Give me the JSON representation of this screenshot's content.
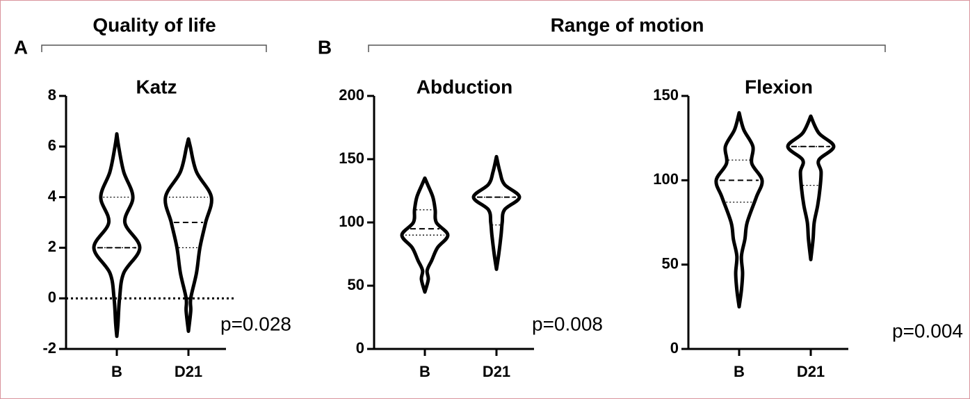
{
  "panels": [
    {
      "label": "A",
      "title": "Quality of life"
    },
    {
      "label": "B",
      "title": "Range of motion"
    }
  ],
  "chart_data": [
    {
      "type": "violin",
      "title": "Katz",
      "categories": [
        "B",
        "D21"
      ],
      "ylim": [
        -2,
        8
      ],
      "yticks": [
        -2,
        0,
        2,
        4,
        6,
        8
      ],
      "reference_line": 0,
      "annotation": "p=0.028",
      "color": "#000000",
      "violins": [
        {
          "y": [
            -1.5,
            -1,
            0,
            1,
            2,
            3,
            4,
            5,
            6,
            6.5
          ],
          "width": [
            0,
            0.05,
            0.12,
            0.3,
            1,
            0.35,
            0.7,
            0.3,
            0.08,
            0
          ],
          "q1": 2,
          "median": 2,
          "q3": 4
        },
        {
          "y": [
            -1.3,
            -0.5,
            0,
            1,
            2,
            3,
            4,
            5,
            6,
            6.3
          ],
          "width": [
            0,
            0.1,
            0.1,
            0.35,
            0.5,
            0.75,
            1,
            0.35,
            0.08,
            0
          ],
          "q1": 2,
          "median": 3,
          "q3": 4
        }
      ]
    },
    {
      "type": "violin",
      "title": "Abduction",
      "categories": [
        "B",
        "D21"
      ],
      "ylim": [
        0,
        200
      ],
      "yticks": [
        0,
        50,
        100,
        150,
        200
      ],
      "annotation": "p=0.008",
      "color": "#000000",
      "violins": [
        {
          "y": [
            45,
            55,
            62,
            70,
            80,
            90,
            100,
            110,
            120,
            130,
            135
          ],
          "width": [
            0,
            0.15,
            0.1,
            0.3,
            0.55,
            1,
            0.5,
            0.45,
            0.35,
            0.12,
            0
          ],
          "q1": 90,
          "median": 95,
          "q3": 110
        },
        {
          "y": [
            63,
            75,
            90,
            100,
            110,
            120,
            130,
            140,
            152
          ],
          "width": [
            0,
            0.1,
            0.2,
            0.25,
            0.35,
            1,
            0.35,
            0.15,
            0
          ],
          "q1": 98,
          "median": 120,
          "q3": 120
        }
      ]
    },
    {
      "type": "violin",
      "title": "Flexion",
      "categories": [
        "B",
        "D21"
      ],
      "ylim": [
        0,
        150
      ],
      "yticks": [
        0,
        50,
        100,
        150
      ],
      "annotation": "p=0.004",
      "color": "#000000",
      "violins": [
        {
          "y": [
            25,
            35,
            45,
            55,
            65,
            75,
            90,
            100,
            110,
            120,
            130,
            140
          ],
          "width": [
            0,
            0.1,
            0.15,
            0.1,
            0.25,
            0.35,
            0.75,
            1,
            0.55,
            0.6,
            0.2,
            0
          ],
          "q1": 87,
          "median": 100,
          "q3": 112
        },
        {
          "y": [
            53,
            65,
            75,
            85,
            95,
            105,
            112,
            120,
            128,
            138
          ],
          "width": [
            0,
            0.1,
            0.15,
            0.3,
            0.4,
            0.45,
            0.35,
            1,
            0.35,
            0
          ],
          "q1": 97,
          "median": 120,
          "q3": 120
        }
      ]
    }
  ]
}
